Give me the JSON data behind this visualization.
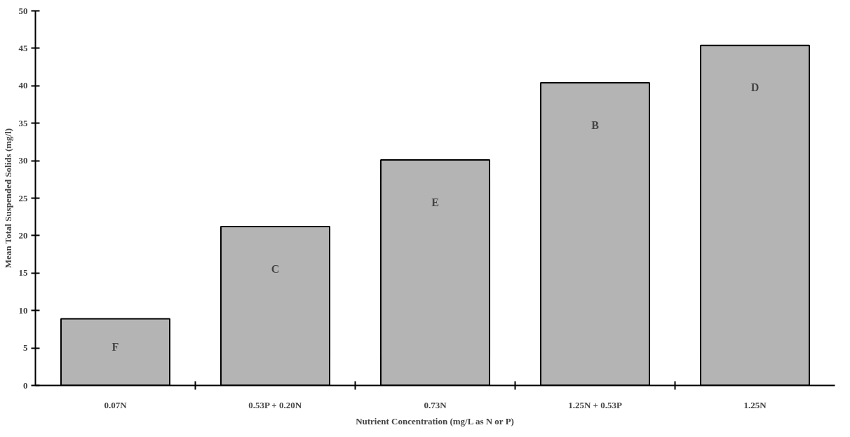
{
  "chart_data": {
    "type": "bar",
    "xlabel": "Nutrient Concentration (mg/L as N or P)",
    "ylabel": "Mean Total Suspended Solids (mg/l)",
    "categories": [
      "0.07N",
      "0.53P + 0.20N",
      "0.73N",
      "1.25N + 0.53P",
      "1.25N"
    ],
    "values": [
      8.9,
      21.2,
      30.1,
      40.4,
      45.4
    ],
    "color": "#b4b4b4",
    "ylim": [
      0,
      50
    ],
    "yticks": [
      0,
      5,
      10,
      15,
      20,
      25,
      30,
      35,
      40,
      45,
      50
    ],
    "grid": false,
    "annotations": [
      "F",
      "C",
      "E",
      "B",
      "D"
    ]
  }
}
